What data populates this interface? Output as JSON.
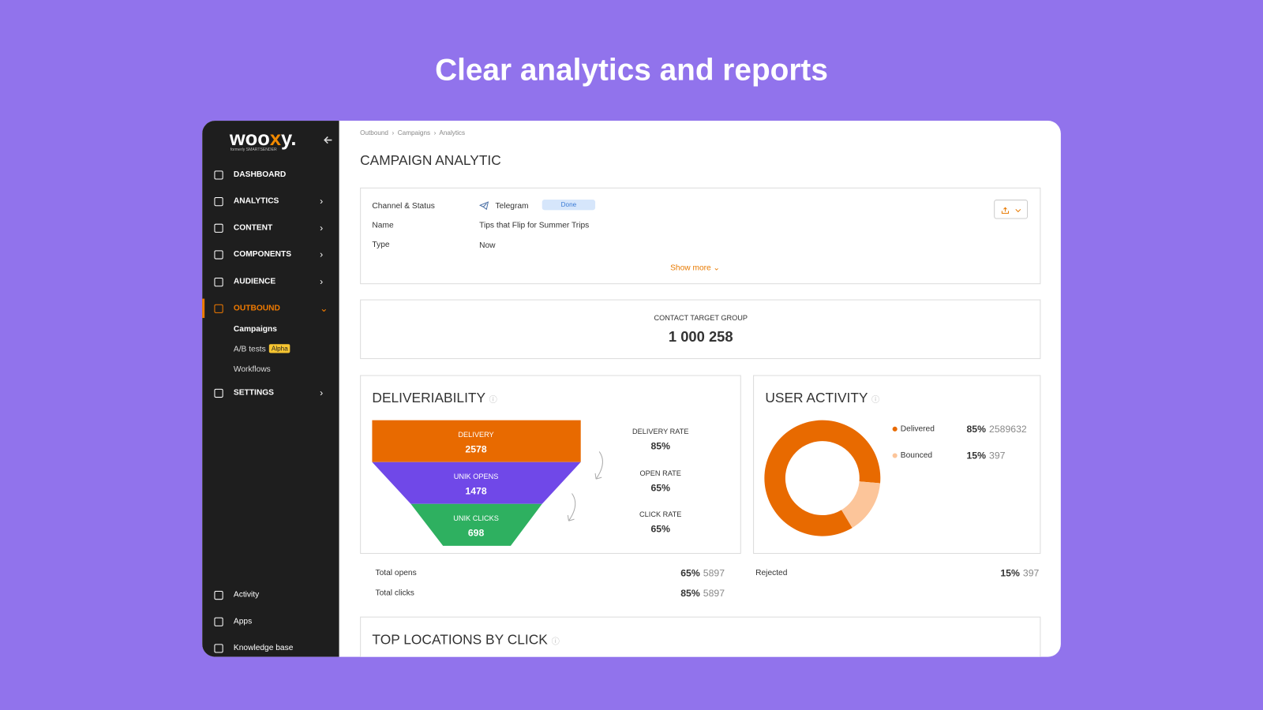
{
  "headline": "Clear analytics and reports",
  "sidebar": {
    "logo_main": "woo",
    "logo_x": "x",
    "logo_end": "y.",
    "logo_sub": "formerly SMARTSENDER",
    "nav": [
      "DASHBOARD",
      "ANALYTICS",
      "CONTENT",
      "COMPONENTS",
      "AUDIENCE",
      "OUTBOUND"
    ],
    "outbound_items": [
      "Campaigns",
      "A/B tests",
      "Workflows"
    ],
    "badge": "Alpha",
    "settings": "SETTINGS",
    "bottom": [
      "Activity",
      "Apps",
      "Knowledge base"
    ]
  },
  "breadcrumbs": [
    "Outbound",
    "Campaigns",
    "Analytics"
  ],
  "page_title": "CAMPAIGN ANALYTIC",
  "info": {
    "rows": [
      {
        "label": "Channel & Status",
        "value": "Telegram",
        "status": "Done"
      },
      {
        "label": "Name",
        "value": "Tips that Flip for Summer Trips"
      },
      {
        "label": "Type",
        "value": "Now"
      }
    ],
    "show_more": "Show more"
  },
  "contact_target": {
    "label": "CONTACT TARGET GROUP",
    "value": "1 000 258"
  },
  "deliverability": {
    "title": "DELIVERIABILITY",
    "funnel": [
      {
        "label": "DELIVERY",
        "value": "2578"
      },
      {
        "label": "UNIK OPENS",
        "value": "1478"
      },
      {
        "label": "UNIK CLICKS",
        "value": "698"
      }
    ],
    "rates": [
      {
        "label": "DELIVERY RATE",
        "value": "85%"
      },
      {
        "label": "OPEN RATE",
        "value": "65%"
      },
      {
        "label": "CLICK RATE",
        "value": "65%"
      }
    ],
    "totals": [
      {
        "label": "Total opens",
        "pct": "65%",
        "count": "5897"
      },
      {
        "label": "Total clicks",
        "pct": "85%",
        "count": "5897"
      }
    ]
  },
  "user_activity": {
    "title": "USER ACTIVITY",
    "totals": [
      {
        "label": "Rejected",
        "pct": "15%",
        "count": "397"
      }
    ]
  },
  "chart_data": {
    "type": "donut",
    "categories": [
      "Delivered",
      "Bounced"
    ],
    "values": [
      85,
      15
    ],
    "value_labels": [
      "85%",
      "15%"
    ],
    "counts": [
      "2589632",
      "397"
    ],
    "colors": [
      "#e86a00",
      "#fcc59a"
    ]
  },
  "top_locations": {
    "title": "TOP LOCATIONS BY CLICK"
  }
}
